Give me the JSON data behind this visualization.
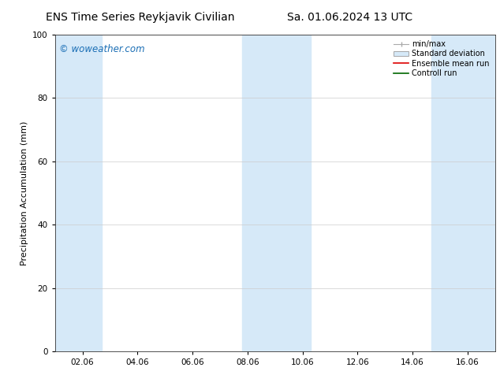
{
  "title_left": "ENS Time Series Reykjavik Civilian",
  "title_right": "Sa. 01.06.2024 13 UTC",
  "ylabel": "Precipitation Accumulation (mm)",
  "watermark": "© woweather.com",
  "ylim": [
    0,
    100
  ],
  "yticks": [
    0,
    20,
    40,
    60,
    80,
    100
  ],
  "x_tick_labels": [
    "02.06",
    "04.06",
    "06.06",
    "08.06",
    "10.06",
    "12.06",
    "14.06",
    "16.06"
  ],
  "x_tick_positions": [
    2,
    4,
    6,
    8,
    10,
    12,
    14,
    16
  ],
  "xlim": [
    1,
    17
  ],
  "background_color": "#ffffff",
  "plot_bg_color": "#ffffff",
  "shaded_regions": [
    {
      "x_start": 1.0,
      "x_end": 2.7,
      "color": "#d6e9f8",
      "alpha": 1.0
    },
    {
      "x_start": 7.8,
      "x_end": 10.3,
      "color": "#d6e9f8",
      "alpha": 1.0
    },
    {
      "x_start": 14.7,
      "x_end": 17.0,
      "color": "#d6e9f8",
      "alpha": 1.0
    }
  ],
  "legend_items": [
    {
      "label": "min/max",
      "type": "errorbar",
      "color": "#aaaaaa"
    },
    {
      "label": "Standard deviation",
      "type": "bar",
      "color": "#d6e9f8"
    },
    {
      "label": "Ensemble mean run",
      "type": "line",
      "color": "#dd0000"
    },
    {
      "label": "Controll run",
      "type": "line",
      "color": "#006600"
    }
  ],
  "title_fontsize": 10,
  "axis_fontsize": 8,
  "tick_fontsize": 7.5,
  "legend_fontsize": 7,
  "watermark_color": "#1a6eb5",
  "watermark_fontsize": 8.5
}
